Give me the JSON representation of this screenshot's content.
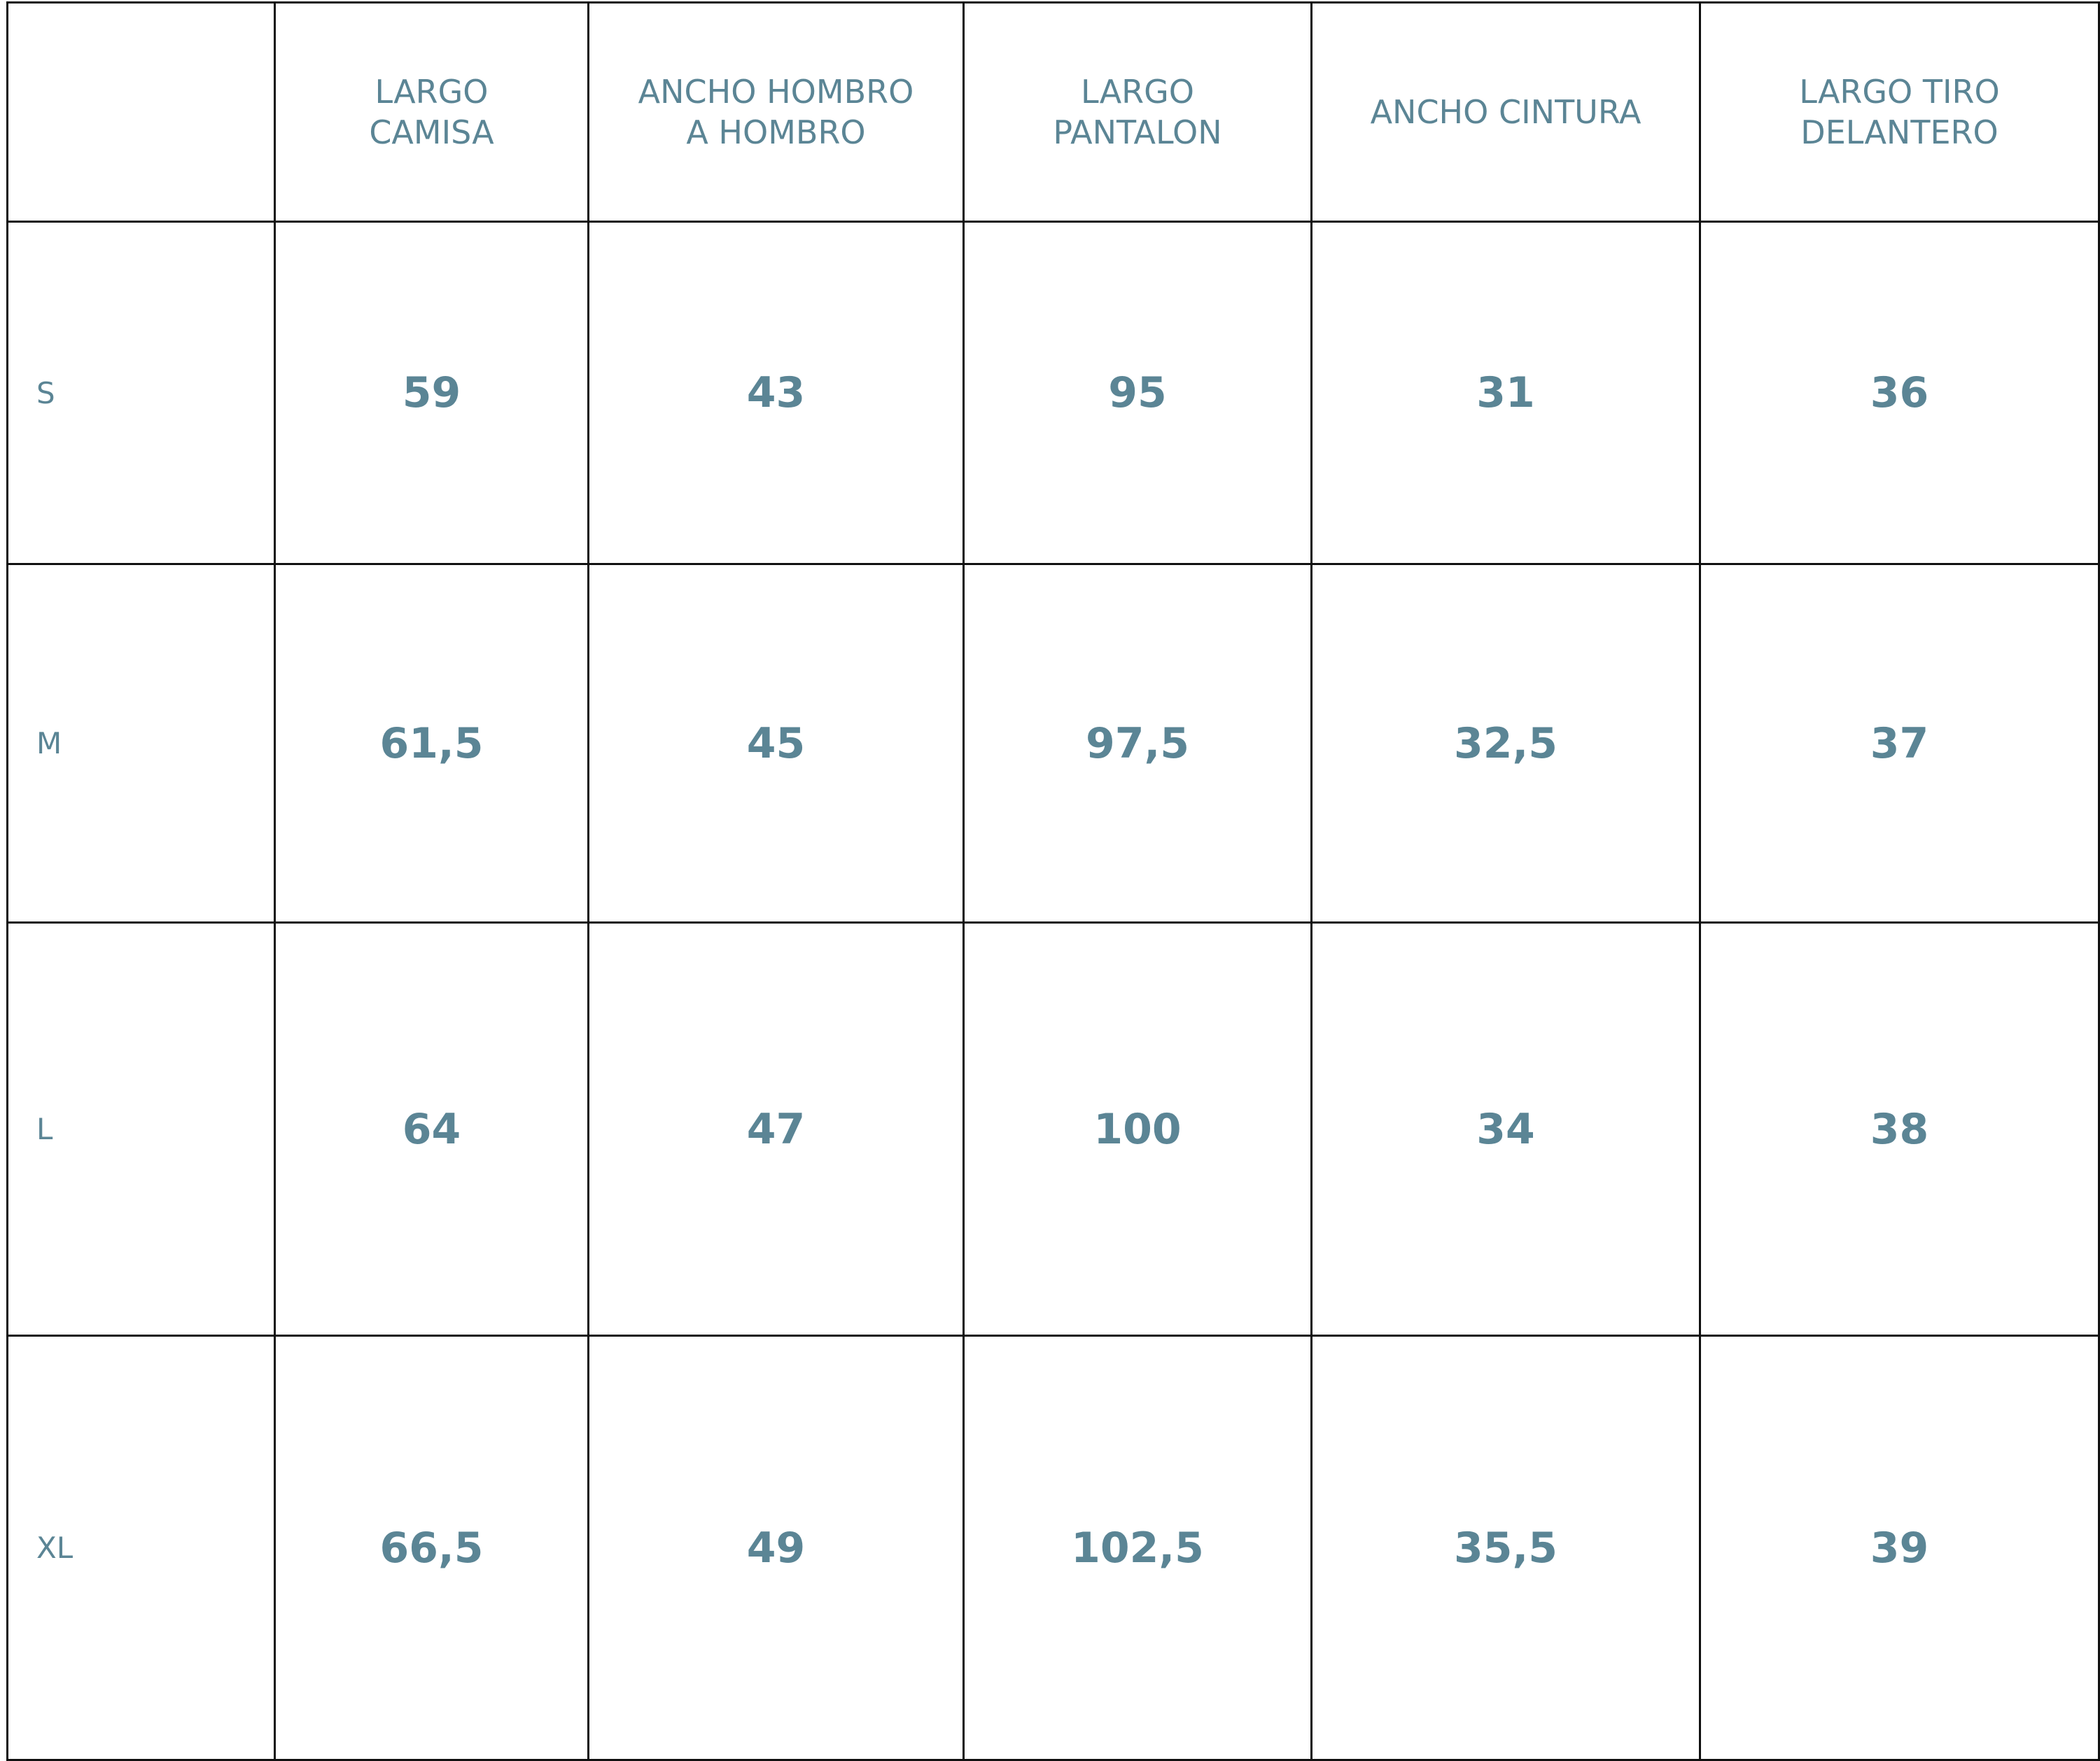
{
  "table": {
    "headers": [
      "",
      "LARGO\nCAMISA",
      "ANCHO HOMBRO\nA HOMBRO",
      "LARGO\nPANTALON",
      "ANCHO CINTURA",
      "LARGO TIRO\nDELANTERO"
    ],
    "rows": [
      {
        "size": "S",
        "values": [
          "59",
          "43",
          "95",
          "31",
          "36"
        ]
      },
      {
        "size": "M",
        "values": [
          "61,5",
          "45",
          "97,5",
          "32,5",
          "37"
        ]
      },
      {
        "size": "L",
        "values": [
          "64",
          "47",
          "100",
          "34",
          "38"
        ]
      },
      {
        "size": "XL",
        "values": [
          "66,5",
          "49",
          "102,5",
          "35,5",
          "39"
        ]
      }
    ],
    "text_color": "#5b8595",
    "border_color": "#111111"
  }
}
